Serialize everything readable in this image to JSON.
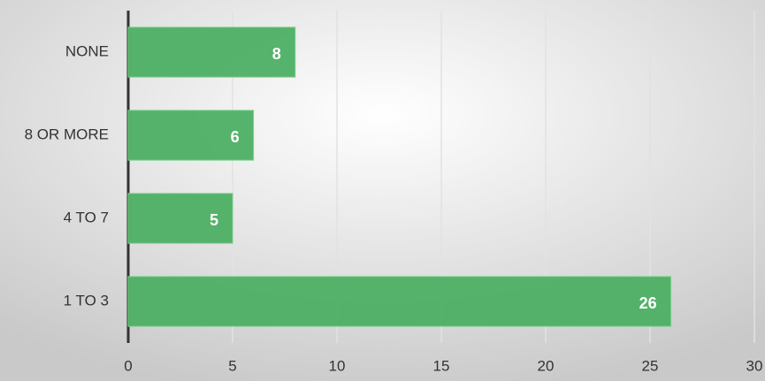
{
  "chart_data": {
    "type": "hbar",
    "categories": [
      "NONE",
      "8 OR MORE",
      "4 TO 7",
      "1 TO 3"
    ],
    "values": [
      8,
      6,
      5,
      26
    ],
    "color": "#4caf64",
    "xlim": [
      0,
      30
    ],
    "xticks": [
      0,
      5,
      10,
      15,
      20,
      25,
      30
    ],
    "grid": true
  }
}
